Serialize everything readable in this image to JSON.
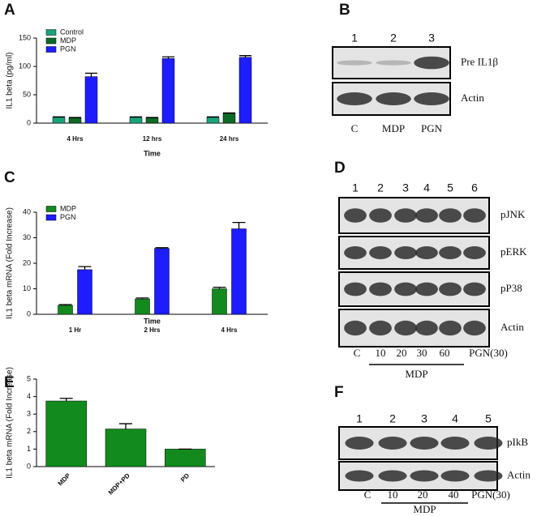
{
  "chart_data": [
    {
      "type": "bar",
      "letter": "A",
      "ylabel": "IL1 beta (pg/ml)",
      "xlabel": "Time",
      "categories": [
        "4 Hrs",
        "12 hrs",
        "24 hrs"
      ],
      "series": [
        {
          "name": "Control",
          "color": "#1aa47c",
          "values": [
            10,
            10,
            10
          ],
          "errors": [
            1,
            1,
            1
          ]
        },
        {
          "name": "MDP",
          "color": "#0b6b26",
          "values": [
            9,
            9,
            17
          ],
          "errors": [
            1,
            1,
            1
          ]
        },
        {
          "name": "PGN",
          "color": "#1d1dff",
          "values": [
            82,
            114,
            116
          ],
          "errors": [
            6,
            3,
            3
          ]
        }
      ],
      "ylim": [
        0,
        150
      ],
      "yticks": [
        0,
        50,
        100,
        150
      ]
    },
    {
      "type": "bar",
      "letter": "C",
      "ylabel": "IL1 beta mRNA (Fold Increase)",
      "xlabel": "Time",
      "categories": [
        "1 Hr",
        "2 Hrs",
        "4 Hrs"
      ],
      "series": [
        {
          "name": "MDP",
          "color": "#128a1e",
          "values": [
            3.5,
            6,
            10
          ],
          "errors": [
            0.3,
            0.4,
            0.6
          ]
        },
        {
          "name": "PGN",
          "color": "#1d1dff",
          "values": [
            17.5,
            25.8,
            33.5
          ],
          "errors": [
            1.2,
            0.3,
            2.5
          ]
        }
      ],
      "ylim": [
        0,
        40
      ],
      "yticks": [
        0,
        10,
        20,
        30,
        40
      ]
    },
    {
      "type": "bar",
      "letter": "E",
      "ylabel": "IL1 beta mRNA (Fold Increase)",
      "categories": [
        "MDP",
        "MDP+PD",
        "PD"
      ],
      "values": [
        3.75,
        2.15,
        1.0
      ],
      "errors": [
        0.15,
        0.3,
        0
      ],
      "color": "#128a1e",
      "ylim": [
        0,
        5
      ],
      "yticks": [
        0,
        1,
        2,
        3,
        4,
        5
      ]
    }
  ],
  "blots": [
    {
      "letter": "B",
      "lanes": [
        "1",
        "2",
        "3"
      ],
      "bands": [
        "Pre IL1β",
        "Actin"
      ],
      "bottom": [
        "C",
        "MDP",
        "PGN"
      ]
    },
    {
      "letter": "D",
      "lanes": [
        "1",
        "2",
        "3",
        "4",
        "5",
        "6"
      ],
      "bands": [
        "pJNK",
        "pERK",
        "pP38",
        "Actin"
      ],
      "bottom": [
        "C",
        "10",
        "20",
        "30",
        "60",
        "PGN(30)"
      ],
      "group": "MDP"
    },
    {
      "letter": "F",
      "lanes": [
        "1",
        "2",
        "3",
        "4",
        "5"
      ],
      "bands": [
        "pIkB",
        "Actin"
      ],
      "bottom": [
        "C",
        "10",
        "20",
        "40",
        "PGN(30)"
      ],
      "group": "MDP"
    }
  ]
}
